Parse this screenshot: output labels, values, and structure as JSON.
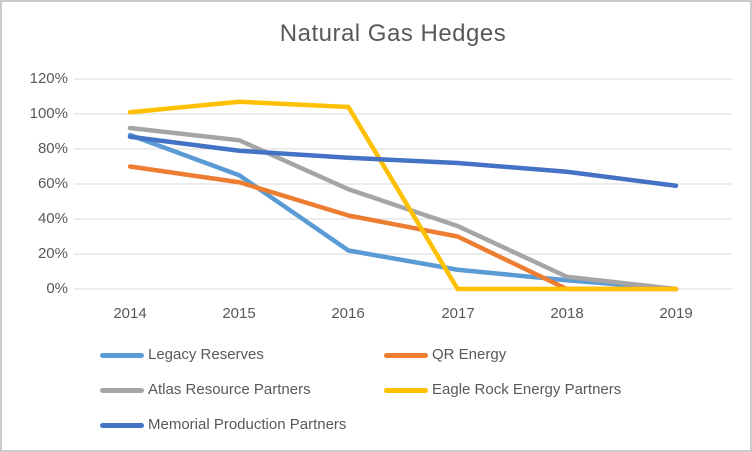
{
  "window": {
    "background": "#FFFFFF",
    "border_color": "#CBCBCB"
  },
  "chart_data": {
    "type": "line",
    "title": "Natural Gas Hedges",
    "xlabel": "",
    "ylabel": "",
    "categories": [
      "2014",
      "2015",
      "2016",
      "2017",
      "2018",
      "2019"
    ],
    "yticks": [
      120,
      100,
      80,
      60,
      40,
      20,
      0
    ],
    "ytick_labels": [
      "120%",
      "100%",
      "80%",
      "60%",
      "40%",
      "20%",
      "0%"
    ],
    "ylim": [
      0,
      120
    ],
    "unit": "percent",
    "grid": true,
    "legend_position": "bottom",
    "series": [
      {
        "name": "Legacy Reserves",
        "color": "#5B9BD5",
        "values": [
          88,
          65,
          22,
          11,
          5,
          0
        ]
      },
      {
        "name": "QR Energy",
        "color": "#ED7D31",
        "values": [
          70,
          61,
          42,
          30,
          0,
          0
        ]
      },
      {
        "name": "Atlas Resource Partners",
        "color": "#A5A5A5",
        "values": [
          92,
          85,
          57,
          36,
          7,
          0
        ]
      },
      {
        "name": "Eagle Rock Energy Partners",
        "color": "#FFC000",
        "values": [
          101,
          107,
          104,
          0,
          0,
          0
        ]
      },
      {
        "name": "Memorial Production Partners",
        "color": "#4472C4",
        "values": [
          87,
          79,
          75,
          72,
          67,
          59
        ]
      }
    ],
    "styles": {
      "title_color": "#595959",
      "axis_label_color": "#595959",
      "gridline_color": "#D9D9D9",
      "line_width": 4.5
    }
  }
}
